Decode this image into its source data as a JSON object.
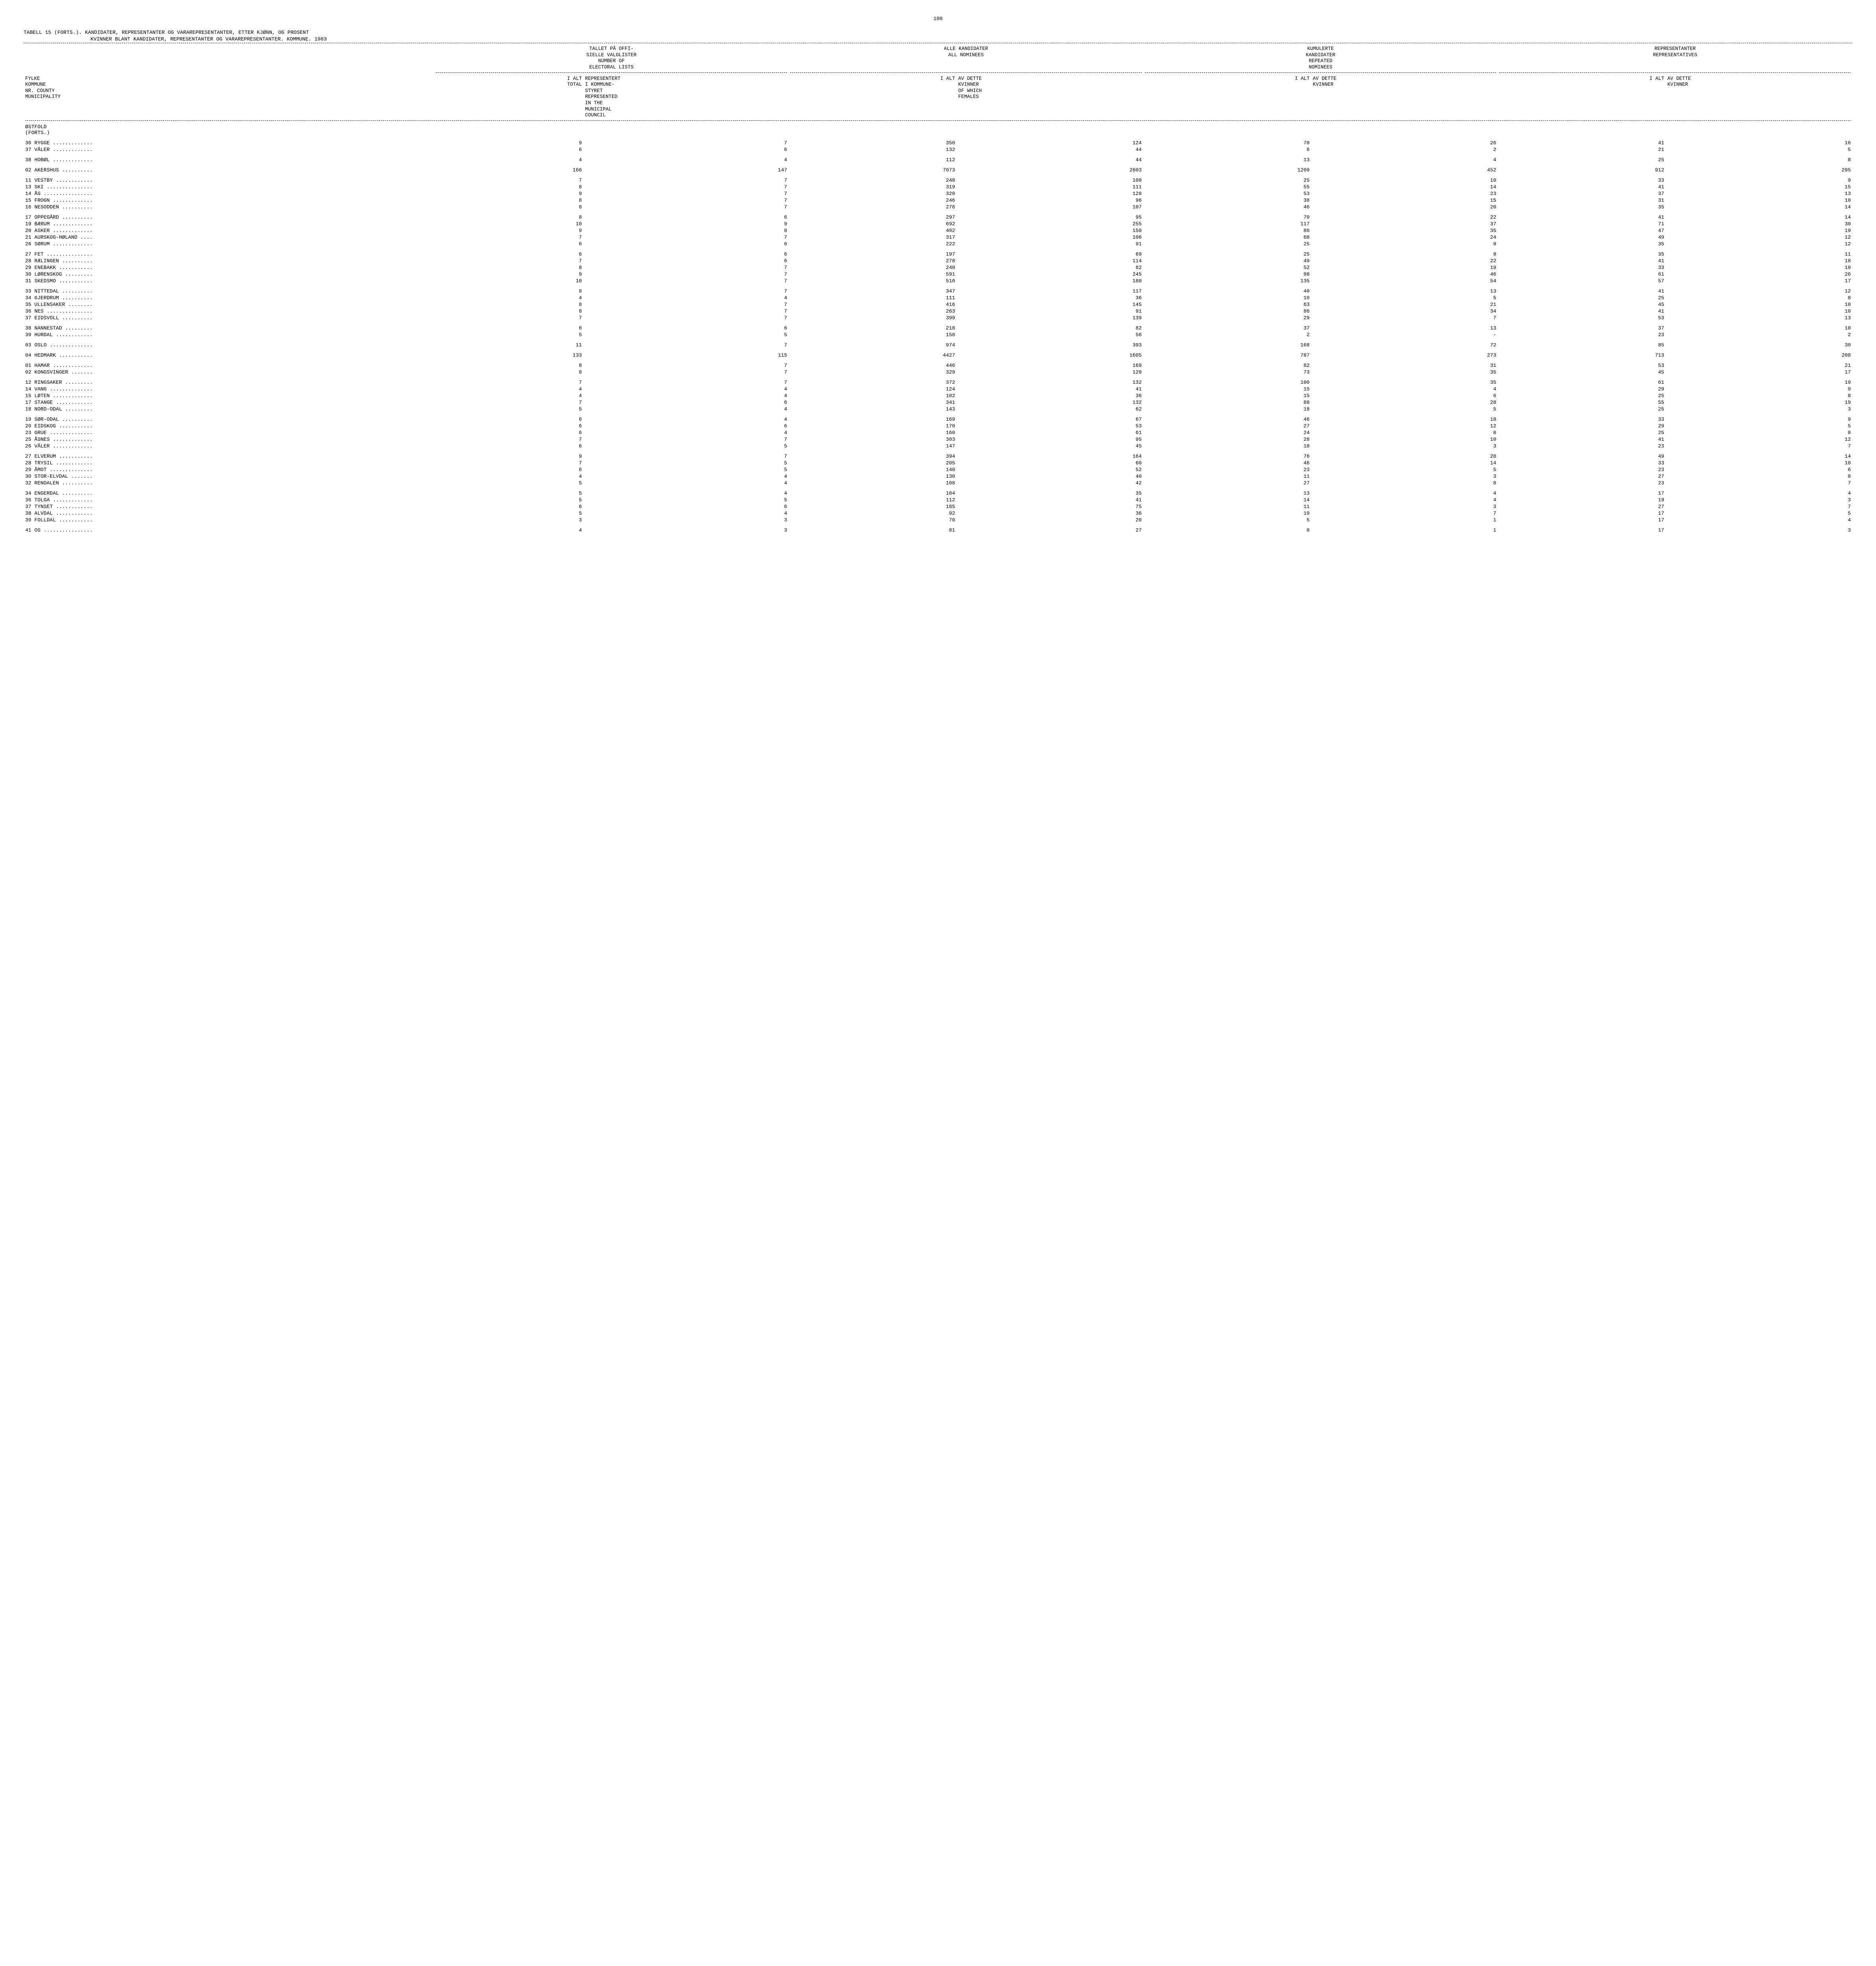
{
  "page_number": "100",
  "title_line1": "TABELL 15 (FORTS.).  KANDIDATER, REPRESENTANTER OG VARAREPRESENTANTER, ETTER KJØNN, OG PROSENT",
  "title_line2": "KVINNER BLANT KANDIDATER, REPRESENTANTER OG VARAREPRESENTANTER.  KOMMUNE.  1983",
  "header_groups": {
    "g1": [
      "TALLET PÅ OFFI-",
      "SIELLE VALGLISTER",
      "NUMBER OF",
      "ELECTORAL LISTS"
    ],
    "g2": [
      "ALLE KANDIDATER",
      "ALL NOMINEES"
    ],
    "g3": [
      "KUMULERTE",
      "KANDIDATER",
      "REPEATED",
      "NOMINEES"
    ],
    "g4": [
      "REPRESENTANTER",
      "REPRESENTATIVES"
    ]
  },
  "row_header": {
    "left": [
      "FYLKE",
      "KOMMUNE",
      "NR. COUNTY",
      "MUNICIPALITY"
    ],
    "c1a": "I ALT\nTOTAL",
    "c1b": [
      "REPRESENTERT",
      "I KOMMUNE-",
      "STYRET",
      "REPRESENTED",
      "IN THE",
      "MUNICIPAL",
      "COUNCIL"
    ],
    "c2a": "I ALT",
    "c2b": [
      "AV DETTE",
      "KVINNER",
      "OF WHICH",
      "FEMALES"
    ],
    "c3a": "I ALT",
    "c3b": [
      "AV DETTE",
      "KVINNER"
    ],
    "c4a": "I ALT",
    "c4b": [
      "AV DETTE",
      "KVINNER"
    ]
  },
  "section_label": "ØSTFOLD\n(FORTS.)",
  "rows": [
    {
      "g": 1,
      "nr": "36",
      "name": "RYGGE",
      "v": [
        9,
        7,
        350,
        124,
        70,
        26,
        41,
        16
      ]
    },
    {
      "g": 0,
      "nr": "37",
      "name": "VÅLER",
      "v": [
        6,
        6,
        132,
        44,
        6,
        2,
        21,
        5
      ]
    },
    {
      "g": 1,
      "nr": "38",
      "name": "HOBØL",
      "v": [
        4,
        4,
        112,
        44,
        13,
        4,
        25,
        8
      ]
    },
    {
      "g": 1,
      "nr": "02",
      "name": "AKERSHUS",
      "v": [
        166,
        147,
        7073,
        2603,
        1209,
        452,
        912,
        295
      ]
    },
    {
      "g": 1,
      "nr": "11",
      "name": "VESTBY",
      "v": [
        7,
        7,
        248,
        108,
        25,
        10,
        33,
        9
      ]
    },
    {
      "g": 0,
      "nr": "13",
      "name": "SKI",
      "v": [
        8,
        7,
        319,
        111,
        55,
        14,
        41,
        15
      ]
    },
    {
      "g": 0,
      "nr": "14",
      "name": "ÅS",
      "v": [
        9,
        7,
        320,
        128,
        53,
        23,
        37,
        13
      ]
    },
    {
      "g": 0,
      "nr": "15",
      "name": "FROGN",
      "v": [
        8,
        7,
        246,
        96,
        38,
        15,
        31,
        10
      ]
    },
    {
      "g": 0,
      "nr": "16",
      "name": "NESODDEN",
      "v": [
        8,
        7,
        276,
        107,
        46,
        20,
        35,
        14
      ]
    },
    {
      "g": 1,
      "nr": "17",
      "name": "OPPEGÅRD",
      "v": [
        8,
        6,
        297,
        95,
        70,
        22,
        41,
        14
      ]
    },
    {
      "g": 0,
      "nr": "19",
      "name": "BÆRUM",
      "v": [
        10,
        9,
        692,
        255,
        117,
        37,
        71,
        30
      ]
    },
    {
      "g": 0,
      "nr": "20",
      "name": "ASKER",
      "v": [
        9,
        8,
        402,
        150,
        86,
        35,
        47,
        19
      ]
    },
    {
      "g": 0,
      "nr": "21",
      "name": "AURSKOG-HØLAND",
      "v": [
        7,
        7,
        317,
        106,
        68,
        24,
        49,
        12
      ]
    },
    {
      "g": 0,
      "nr": "26",
      "name": "SØRUM",
      "v": [
        6,
        6,
        222,
        91,
        25,
        9,
        35,
        12
      ]
    },
    {
      "g": 1,
      "nr": "27",
      "name": "FET",
      "v": [
        6,
        6,
        197,
        69,
        25,
        9,
        35,
        11
      ]
    },
    {
      "g": 0,
      "nr": "28",
      "name": "RÆLINGEN",
      "v": [
        7,
        6,
        278,
        114,
        49,
        22,
        41,
        18
      ]
    },
    {
      "g": 0,
      "nr": "29",
      "name": "ENEBAKK",
      "v": [
        8,
        7,
        240,
        82,
        52,
        19,
        33,
        10
      ]
    },
    {
      "g": 0,
      "nr": "30",
      "name": "LØRENSKOG",
      "v": [
        9,
        7,
        591,
        245,
        98,
        46,
        61,
        26
      ]
    },
    {
      "g": 0,
      "nr": "31",
      "name": "SKEDSMO",
      "v": [
        10,
        7,
        516,
        180,
        135,
        54,
        57,
        17
      ]
    },
    {
      "g": 1,
      "nr": "33",
      "name": "NITTEDAL",
      "v": [
        8,
        7,
        347,
        117,
        40,
        13,
        41,
        12
      ]
    },
    {
      "g": 0,
      "nr": "34",
      "name": "GJERDRUM",
      "v": [
        4,
        4,
        111,
        36,
        10,
        5,
        25,
        8
      ]
    },
    {
      "g": 0,
      "nr": "35",
      "name": "ULLENSAKER",
      "v": [
        8,
        7,
        416,
        145,
        63,
        21,
        45,
        10
      ]
    },
    {
      "g": 0,
      "nr": "36",
      "name": "NES",
      "v": [
        8,
        7,
        263,
        91,
        86,
        34,
        41,
        10
      ]
    },
    {
      "g": 0,
      "nr": "37",
      "name": "EIDSVOLL",
      "v": [
        7,
        7,
        399,
        139,
        29,
        7,
        53,
        13
      ]
    },
    {
      "g": 1,
      "nr": "38",
      "name": "NANNESTAD",
      "v": [
        6,
        6,
        218,
        82,
        37,
        13,
        37,
        10
      ]
    },
    {
      "g": 0,
      "nr": "39",
      "name": "HURDAL",
      "v": [
        5,
        5,
        158,
        56,
        2,
        "-",
        23,
        2
      ]
    },
    {
      "g": 1,
      "nr": "03",
      "name": "OSLO",
      "v": [
        11,
        7,
        974,
        393,
        168,
        72,
        85,
        30
      ]
    },
    {
      "g": 1,
      "nr": "04",
      "name": "HEDMARK",
      "v": [
        133,
        115,
        4427,
        1605,
        787,
        273,
        713,
        208
      ]
    },
    {
      "g": 1,
      "nr": "01",
      "name": "HAMAR",
      "v": [
        8,
        7,
        446,
        169,
        82,
        31,
        53,
        21
      ]
    },
    {
      "g": 0,
      "nr": "02",
      "name": "KONGSVINGER",
      "v": [
        8,
        7,
        329,
        120,
        73,
        35,
        45,
        17
      ]
    },
    {
      "g": 1,
      "nr": "12",
      "name": "RINGSAKER",
      "v": [
        7,
        7,
        372,
        132,
        100,
        35,
        61,
        19
      ]
    },
    {
      "g": 0,
      "nr": "14",
      "name": "VANG",
      "v": [
        4,
        4,
        124,
        41,
        15,
        4,
        29,
        9
      ]
    },
    {
      "g": 0,
      "nr": "15",
      "name": "LØTEN",
      "v": [
        4,
        4,
        102,
        36,
        15,
        6,
        25,
        8
      ]
    },
    {
      "g": 0,
      "nr": "17",
      "name": "STANGE",
      "v": [
        7,
        6,
        341,
        132,
        88,
        28,
        55,
        19
      ]
    },
    {
      "g": 0,
      "nr": "18",
      "name": "NORD-ODAL",
      "v": [
        5,
        4,
        143,
        62,
        18,
        5,
        25,
        3
      ]
    },
    {
      "g": 1,
      "nr": "19",
      "name": "SØR-ODAL",
      "v": [
        6,
        4,
        169,
        67,
        46,
        18,
        33,
        9
      ]
    },
    {
      "g": 0,
      "nr": "20",
      "name": "EIDSKOG",
      "v": [
        6,
        6,
        170,
        53,
        27,
        12,
        29,
        5
      ]
    },
    {
      "g": 0,
      "nr": "23",
      "name": "GRUE",
      "v": [
        6,
        4,
        160,
        61,
        24,
        8,
        25,
        8
      ]
    },
    {
      "g": 0,
      "nr": "25",
      "name": "ÅSNES",
      "v": [
        7,
        7,
        303,
        95,
        28,
        10,
        41,
        12
      ]
    },
    {
      "g": 0,
      "nr": "26",
      "name": "VÅLER",
      "v": [
        6,
        5,
        147,
        45,
        18,
        3,
        23,
        7
      ]
    },
    {
      "g": 1,
      "nr": "27",
      "name": "ELVERUM",
      "v": [
        9,
        7,
        394,
        164,
        76,
        28,
        49,
        14
      ]
    },
    {
      "g": 0,
      "nr": "28",
      "name": "TRYSIL",
      "v": [
        7,
        5,
        205,
        60,
        46,
        14,
        33,
        10
      ]
    },
    {
      "g": 0,
      "nr": "29",
      "name": "ÅMOT",
      "v": [
        6,
        5,
        140,
        52,
        23,
        5,
        23,
        6
      ]
    },
    {
      "g": 0,
      "nr": "30",
      "name": "STOR-ELVDAL",
      "v": [
        4,
        4,
        130,
        40,
        11,
        3,
        27,
        8
      ]
    },
    {
      "g": 0,
      "nr": "32",
      "name": "RENDALEN",
      "v": [
        5,
        4,
        108,
        42,
        27,
        8,
        23,
        7
      ]
    },
    {
      "g": 1,
      "nr": "34",
      "name": "ENGERDAL",
      "v": [
        5,
        4,
        104,
        35,
        13,
        4,
        17,
        4
      ]
    },
    {
      "g": 0,
      "nr": "36",
      "name": "TOLGA",
      "v": [
        5,
        5,
        112,
        41,
        14,
        4,
        19,
        3
      ]
    },
    {
      "g": 0,
      "nr": "37",
      "name": "TYNSET",
      "v": [
        6,
        6,
        185,
        75,
        11,
        3,
        27,
        7
      ]
    },
    {
      "g": 0,
      "nr": "38",
      "name": "ALVDAL",
      "v": [
        5,
        4,
        92,
        36,
        19,
        7,
        17,
        5
      ]
    },
    {
      "g": 0,
      "nr": "39",
      "name": "FOLLDAL",
      "v": [
        3,
        3,
        70,
        20,
        5,
        1,
        17,
        4
      ]
    },
    {
      "g": 1,
      "nr": "41",
      "name": "OS",
      "v": [
        4,
        3,
        81,
        27,
        8,
        1,
        17,
        3
      ]
    }
  ],
  "columns_pct": [
    22,
    8,
    11,
    9,
    10,
    9,
    10,
    9,
    10
  ],
  "colors": {
    "background": "#ffffff",
    "text": "#000000"
  }
}
